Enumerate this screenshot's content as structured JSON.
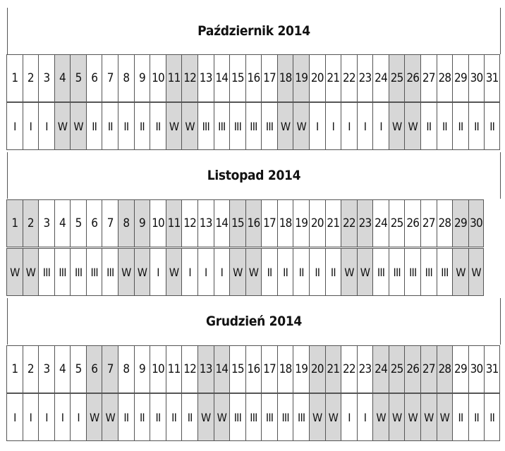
{
  "months": [
    {
      "title": "Październik 2014",
      "days": [
        "1",
        "2",
        "3",
        "4",
        "5",
        "6",
        "7",
        "8",
        "9",
        "10",
        "11",
        "12",
        "13",
        "14",
        "15",
        "16",
        "17",
        "18",
        "19",
        "20",
        "21",
        "22",
        "23",
        "24",
        "25",
        "26",
        "27",
        "28",
        "29",
        "30",
        "31"
      ],
      "shifts": [
        "I",
        "I",
        "I",
        "W",
        "W",
        "II",
        "II",
        "II",
        "II",
        "II",
        "W",
        "W",
        "III",
        "III",
        "III",
        "III",
        "III",
        "W",
        "W",
        "I",
        "I",
        "I",
        "I",
        "I",
        "W",
        "W",
        "II",
        "II",
        "II",
        "II",
        "II"
      ]
    },
    {
      "title": "Listopad 2014",
      "days": [
        "1",
        "2",
        "3",
        "4",
        "5",
        "6",
        "7",
        "8",
        "9",
        "10",
        "11",
        "12",
        "13",
        "14",
        "15",
        "16",
        "17",
        "18",
        "19",
        "20",
        "21",
        "22",
        "23",
        "24",
        "25",
        "26",
        "27",
        "28",
        "29",
        "30"
      ],
      "shifts": [
        "W",
        "W",
        "III",
        "III",
        "III",
        "III",
        "III",
        "W",
        "W",
        "I",
        "W",
        "I",
        "I",
        "I",
        "W",
        "W",
        "II",
        "II",
        "II",
        "II",
        "II",
        "W",
        "W",
        "III",
        "III",
        "III",
        "III",
        "III",
        "W",
        "W"
      ]
    },
    {
      "title": "Grudzień 2014",
      "days": [
        "1",
        "2",
        "3",
        "4",
        "5",
        "6",
        "7",
        "8",
        "9",
        "10",
        "11",
        "12",
        "13",
        "14",
        "15",
        "16",
        "17",
        "18",
        "19",
        "20",
        "21",
        "22",
        "23",
        "24",
        "25",
        "26",
        "27",
        "28",
        "29",
        "30",
        "31"
      ],
      "shifts": [
        "I",
        "I",
        "I",
        "I",
        "I",
        "W",
        "W",
        "II",
        "II",
        "II",
        "II",
        "II",
        "W",
        "W",
        "III",
        "III",
        "III",
        "III",
        "III",
        "W",
        "W",
        "I",
        "I",
        "W",
        "W",
        "W",
        "W",
        "W",
        "II",
        "II",
        "II"
      ]
    }
  ],
  "colors": {
    "day_off_background": "#d7d7d7",
    "grid_line": "#555555"
  }
}
